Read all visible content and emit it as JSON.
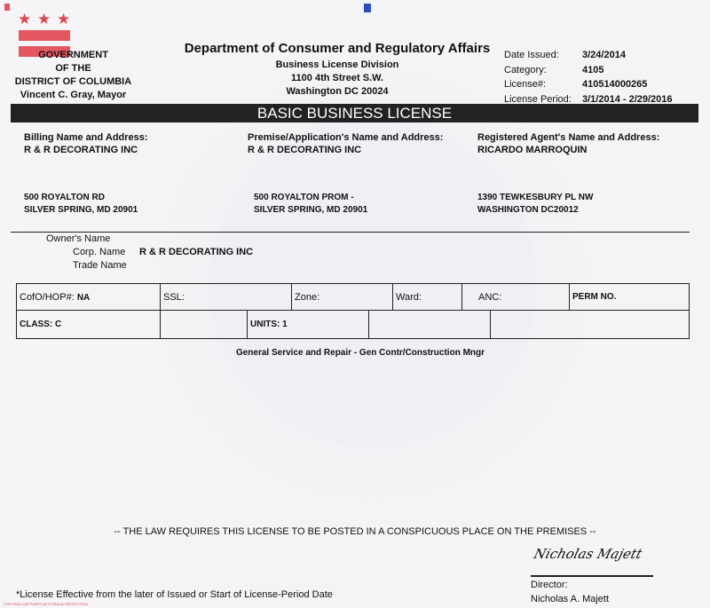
{
  "header": {
    "gov": [
      "GOVERNMENT",
      "OF THE",
      "DISTRICT OF COLUMBIA",
      "Vincent C. Gray, Mayor"
    ],
    "dept": "Department of Consumer and Regulatory Affairs",
    "division": [
      "Business License Division",
      "1100 4th Street S.W.",
      "Washington DC 20024"
    ],
    "meta": [
      {
        "label": "Date Issued:",
        "value": "3/24/2014"
      },
      {
        "label": "Category:",
        "value": "4105"
      },
      {
        "label": "License#:",
        "value": "410514000265"
      },
      {
        "label": "License Period:",
        "value": "3/1/2014 - 2/29/2016"
      }
    ]
  },
  "title": "BASIC BUSINESS LICENSE",
  "addresses": [
    {
      "heading": "Billing Name and Address:",
      "name": "R & R DECORATING INC",
      "line1": "500 ROYALTON RD",
      "line2": "SILVER SPRING, MD 20901"
    },
    {
      "heading": "Premise/Application's Name and Address:",
      "name": "R & R DECORATING INC",
      "line1": "500 ROYALTON PROM -",
      "line2": "SILVER SPRING, MD 20901"
    },
    {
      "heading": "Registered Agent's Name and Address:",
      "name": "RICARDO MARROQUIN",
      "line1": "1390 TEWKESBURY PL NW",
      "line2": "WASHINGTON DC20012"
    }
  ],
  "owner": {
    "owner_label": "Owner's Name",
    "corp_label": "Corp. Name",
    "corp_value": "R & R DECORATING INC",
    "trade_label": "Trade Name"
  },
  "grid": {
    "cofo": "CofO/HOP#:",
    "cofo_value": "NA",
    "ssl": "SSL:",
    "zone": "Zone:",
    "ward": "Ward:",
    "anc": "ANC:",
    "perm": "PERM NO.",
    "class": "CLASS:",
    "class_value": "C",
    "units": "UNITS:",
    "units_value": "1"
  },
  "activity": "General Service and Repair  - Gen Contr/Construction Mngr",
  "notice": "-- THE LAW REQUIRES THIS LICENSE TO BE POSTED IN A CONSPICUOUS PLACE ON THE PREMISES --",
  "signature": {
    "script": "Nicholas Majett",
    "title": "Director:",
    "name": "Nicholas A. Majett"
  },
  "footnote": "*License Effective from the later of Issued or Start of License-Period Date",
  "security_mark": "COPYBAN CAPTURE® ANTI-FRAUD PROTECTION",
  "colors": {
    "flag_red": "#e35761",
    "band": "#222222"
  }
}
